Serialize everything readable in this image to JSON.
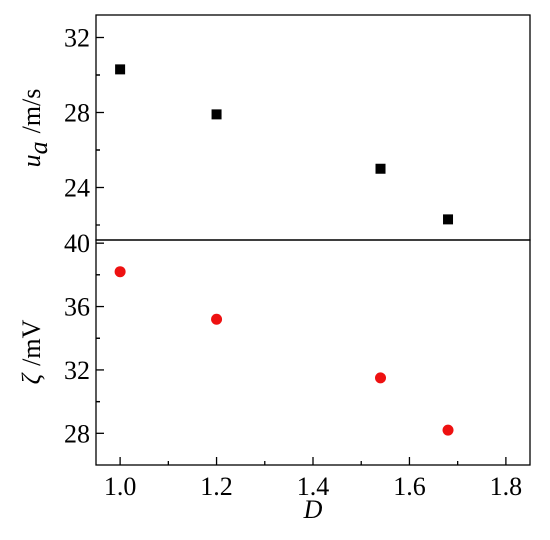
{
  "chart_data": [
    {
      "type": "scatter",
      "title": "",
      "xlabel": "D",
      "ylabel": "u_a /m/s",
      "ylabel_parts": {
        "symbol": "u",
        "subscript": "a",
        "unit": "/m/s"
      },
      "xlim": [
        0.95,
        1.85
      ],
      "ylim": [
        21.2,
        33.2
      ],
      "yticks": [
        24,
        28,
        32
      ],
      "ytick_labels": [
        "24",
        "28",
        "32"
      ],
      "grid": false,
      "marker": "square",
      "color": "#000000",
      "series": [
        {
          "x": [
            1.0,
            1.2,
            1.54,
            1.68
          ],
          "y": [
            30.3,
            27.9,
            25.0,
            22.3
          ]
        }
      ]
    },
    {
      "type": "scatter",
      "title": "",
      "xlabel": "D",
      "ylabel": "ζ /mV",
      "ylabel_parts": {
        "symbol": "ζ",
        "unit": "/mV"
      },
      "xlim": [
        0.95,
        1.85
      ],
      "ylim": [
        26.0,
        40.2
      ],
      "xticks": [
        1.0,
        1.2,
        1.4,
        1.6,
        1.8
      ],
      "xtick_labels": [
        "1.0",
        "1.2",
        "1.4",
        "1.6",
        "1.8"
      ],
      "yticks": [
        28,
        32,
        36,
        40
      ],
      "ytick_labels": [
        "28",
        "32",
        "36",
        "40"
      ],
      "grid": false,
      "marker": "circle",
      "color": "#ee1111",
      "series": [
        {
          "x": [
            1.0,
            1.2,
            1.54,
            1.68
          ],
          "y": [
            38.2,
            35.2,
            31.5,
            28.2
          ]
        }
      ]
    }
  ]
}
